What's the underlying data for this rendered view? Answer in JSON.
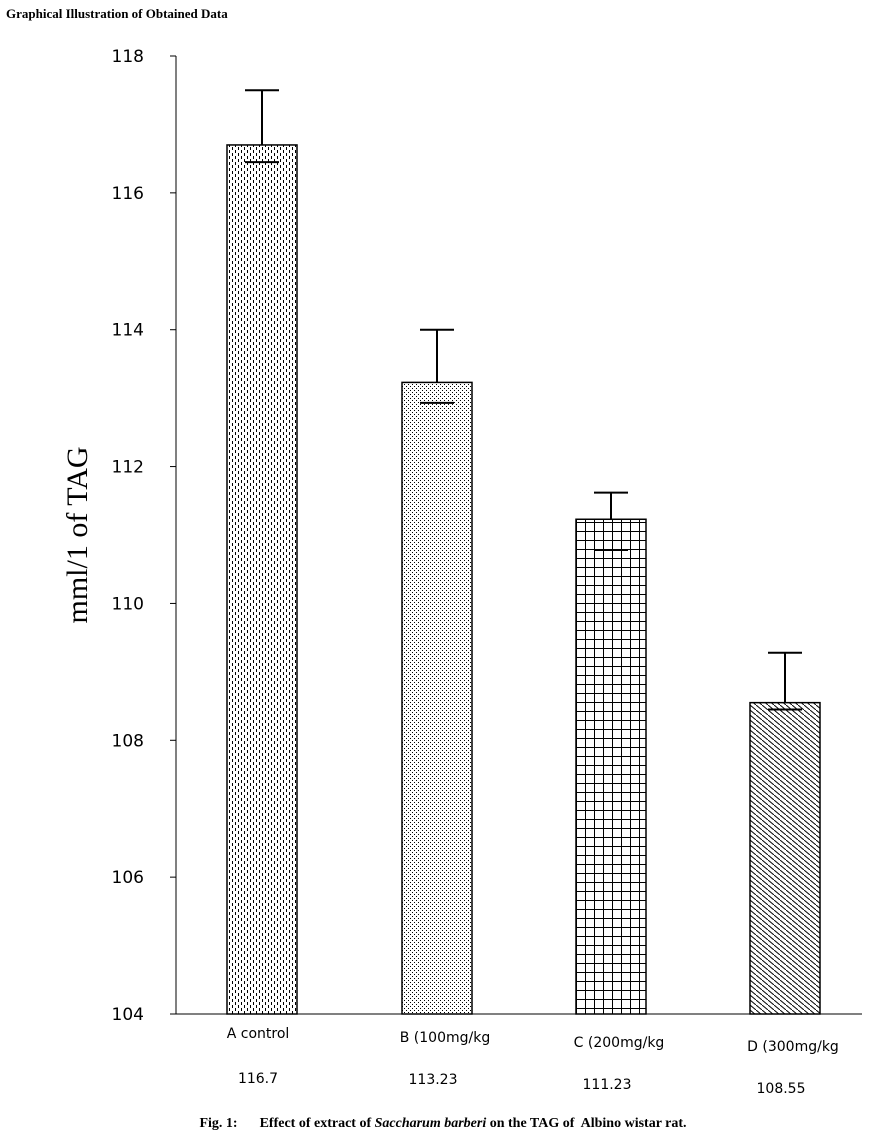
{
  "heading": "Graphical Illustration of Obtained Data",
  "caption": {
    "fig_label": "Fig. 1:",
    "text_before": "Effect of extract of ",
    "text_italic": "Saccharum barberi",
    "text_after": " on the TAG of  Albino wistar rat."
  },
  "chart_data": {
    "type": "bar",
    "ylabel": "mml/1 of TAG",
    "xlabel": "",
    "ylim": [
      104,
      118
    ],
    "yticks": [
      104,
      106,
      108,
      110,
      112,
      114,
      116,
      118
    ],
    "categories": [
      "A control",
      "B (100mg/kg",
      "C (200mg/kg",
      "D (300mg/kg"
    ],
    "value_labels": [
      "116.7",
      "113.23",
      "111.23",
      "108.55"
    ],
    "values": [
      116.7,
      113.23,
      111.23,
      108.55
    ],
    "error_upper": [
      117.5,
      114.0,
      111.62,
      109.28
    ],
    "error_lower": [
      116.45,
      112.93,
      110.78,
      108.45
    ],
    "patterns": [
      "vertical-dashes",
      "fine-dots",
      "grid",
      "diagonal-hatch"
    ],
    "grid": false,
    "legend": "none"
  }
}
